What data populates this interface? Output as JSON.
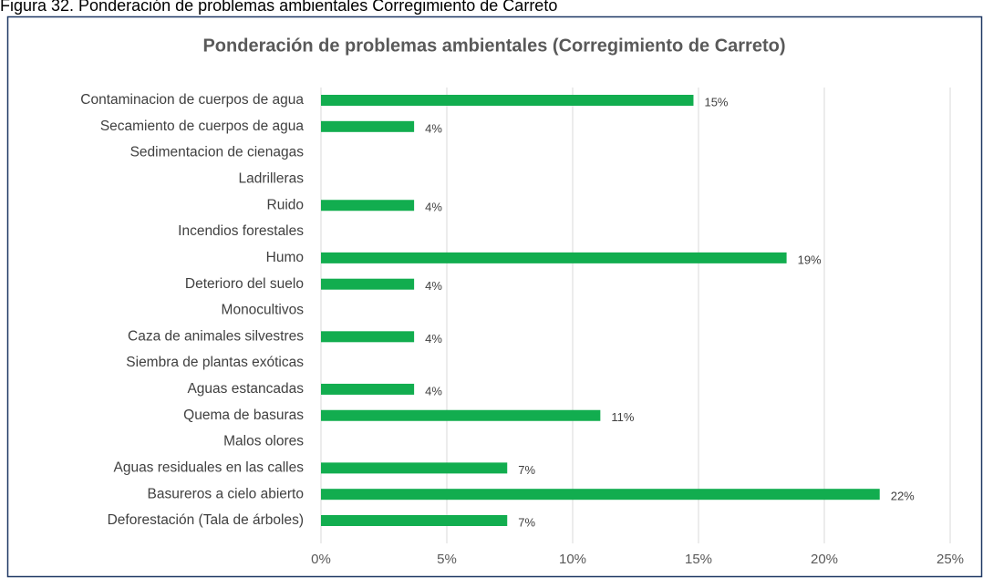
{
  "caption": "Figura 32. Ponderación de problemas ambientales Corregimiento de Carreto",
  "chart_data": {
    "type": "hbar",
    "title": "Ponderación de problemas ambientales  (Corregimiento de Carreto)",
    "categories": [
      "Contaminacion de cuerpos de agua",
      "Secamiento de cuerpos de agua",
      "Sedimentacion de cienagas",
      "Ladrilleras",
      "Ruido",
      "Incendios forestales",
      "Humo",
      "Deterioro del suelo",
      "Monocultivos",
      "Caza de animales silvestres",
      "Siembra de plantas exóticas",
      "Aguas estancadas",
      "Quema de basuras",
      "Malos olores",
      "Aguas residuales en las calles",
      "Basureros a cielo abierto",
      "Deforestación (Tala de árboles)"
    ],
    "values": [
      14.8,
      3.7,
      0,
      0,
      3.7,
      0,
      18.5,
      3.7,
      0,
      3.7,
      0,
      3.7,
      11.1,
      0,
      7.4,
      22.2,
      7.4
    ],
    "value_labels": [
      "15%",
      "4%",
      null,
      null,
      "4%",
      null,
      "19%",
      "4%",
      null,
      "4%",
      null,
      "4%",
      "11%",
      null,
      "7%",
      "22%",
      "7%"
    ],
    "color": "#12ad4f",
    "xlim": [
      0,
      25
    ],
    "xticks": [
      {
        "value": 0,
        "label": "0%"
      },
      {
        "value": 5,
        "label": "5%"
      },
      {
        "value": 10,
        "label": "10%"
      },
      {
        "value": 15,
        "label": "15%"
      },
      {
        "value": 20,
        "label": "20%"
      },
      {
        "value": 25,
        "label": "25%"
      }
    ],
    "grid": true
  }
}
